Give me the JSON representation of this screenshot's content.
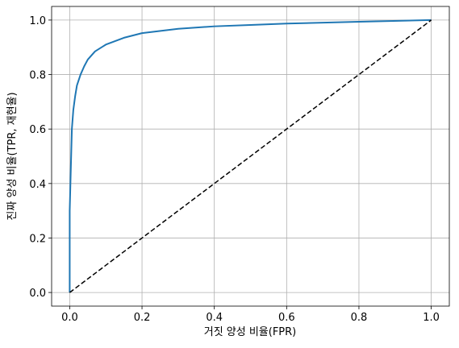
{
  "chart_data": {
    "type": "line",
    "xlabel": "거짓 양성 비율(FPR)",
    "ylabel": "진짜 양성 비율(TPR, 재현율)",
    "series": [
      {
        "color": "#1f77b4",
        "linestyle": "solid",
        "x": [
          0,
          0,
          0.003,
          0.006,
          0.01,
          0.015,
          0.02,
          0.03,
          0.04,
          0.05,
          0.07,
          0.1,
          0.15,
          0.2,
          0.3,
          0.4,
          0.5,
          0.6,
          0.8,
          1.0
        ],
        "values": [
          0,
          0.3,
          0.45,
          0.6,
          0.67,
          0.72,
          0.76,
          0.8,
          0.83,
          0.855,
          0.885,
          0.91,
          0.935,
          0.952,
          0.968,
          0.977,
          0.982,
          0.987,
          0.994,
          1.0
        ]
      },
      {
        "color": "#000000",
        "linestyle": "dashed",
        "x": [
          0,
          1
        ],
        "values": [
          0,
          1
        ]
      }
    ],
    "xlim": [
      -0.05,
      1.05
    ],
    "ylim": [
      -0.05,
      1.05
    ],
    "xticks": [
      {
        "value": 0,
        "label": "0.0"
      },
      0.2,
      0.4,
      0.6,
      0.8,
      {
        "value": 1,
        "label": "1.0"
      }
    ],
    "yticks": [
      {
        "value": 0,
        "label": "0.0"
      },
      0.2,
      0.4,
      0.6,
      0.8,
      {
        "value": 1,
        "label": "1.0"
      }
    ],
    "grid": true
  }
}
